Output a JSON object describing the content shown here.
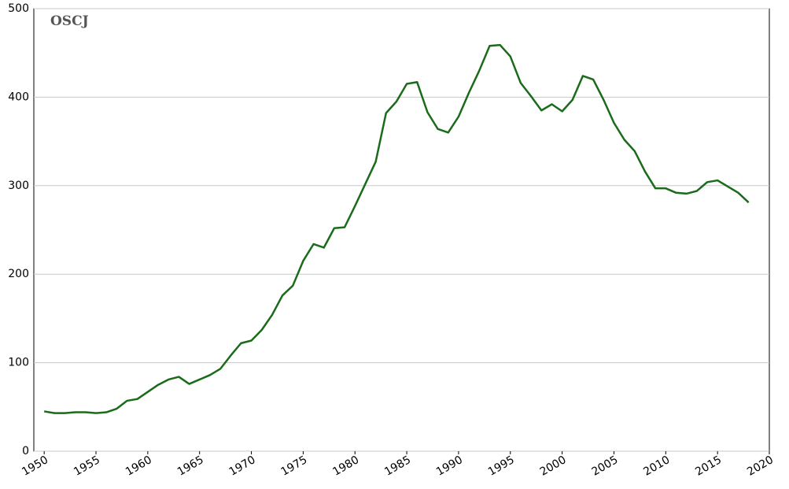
{
  "chart_data": {
    "type": "line",
    "logo": "OSCJ",
    "x": [
      1950,
      1951,
      1952,
      1953,
      1954,
      1955,
      1956,
      1957,
      1958,
      1959,
      1960,
      1961,
      1962,
      1963,
      1964,
      1965,
      1966,
      1967,
      1968,
      1969,
      1970,
      1971,
      1972,
      1973,
      1974,
      1975,
      1976,
      1977,
      1978,
      1979,
      1980,
      1981,
      1982,
      1983,
      1984,
      1985,
      1986,
      1987,
      1988,
      1989,
      1990,
      1991,
      1992,
      1993,
      1994,
      1995,
      1996,
      1997,
      1998,
      1999,
      2000,
      2001,
      2002,
      2003,
      2004,
      2005,
      2006,
      2007,
      2008,
      2009,
      2010,
      2011,
      2012,
      2013,
      2014,
      2015,
      2016,
      2017,
      2018
    ],
    "series": [
      {
        "color": "#1a6b1a",
        "values": [
          45,
          43,
          43,
          44,
          44,
          43,
          44,
          48,
          57,
          59,
          67,
          75,
          81,
          84,
          76,
          81,
          86,
          93,
          108,
          122,
          125,
          137,
          154,
          176,
          187,
          215,
          234,
          230,
          252,
          253,
          277,
          302,
          327,
          382,
          395,
          415,
          417,
          383,
          364,
          360,
          378,
          405,
          430,
          458,
          459,
          446,
          416,
          401,
          385,
          392,
          384,
          397,
          424,
          420,
          397,
          371,
          352,
          339,
          316,
          297,
          297,
          292,
          291,
          294,
          304,
          306,
          299,
          292,
          281
        ]
      }
    ],
    "xlim": [
      1949,
      2020
    ],
    "xticks": [
      1950,
      1955,
      1960,
      1965,
      1970,
      1975,
      1980,
      1985,
      1990,
      1995,
      2000,
      2005,
      2010,
      2015,
      2020
    ],
    "ylim": [
      0,
      500
    ],
    "yticks": [
      0,
      100,
      200,
      300,
      400,
      500
    ],
    "grid": true
  }
}
